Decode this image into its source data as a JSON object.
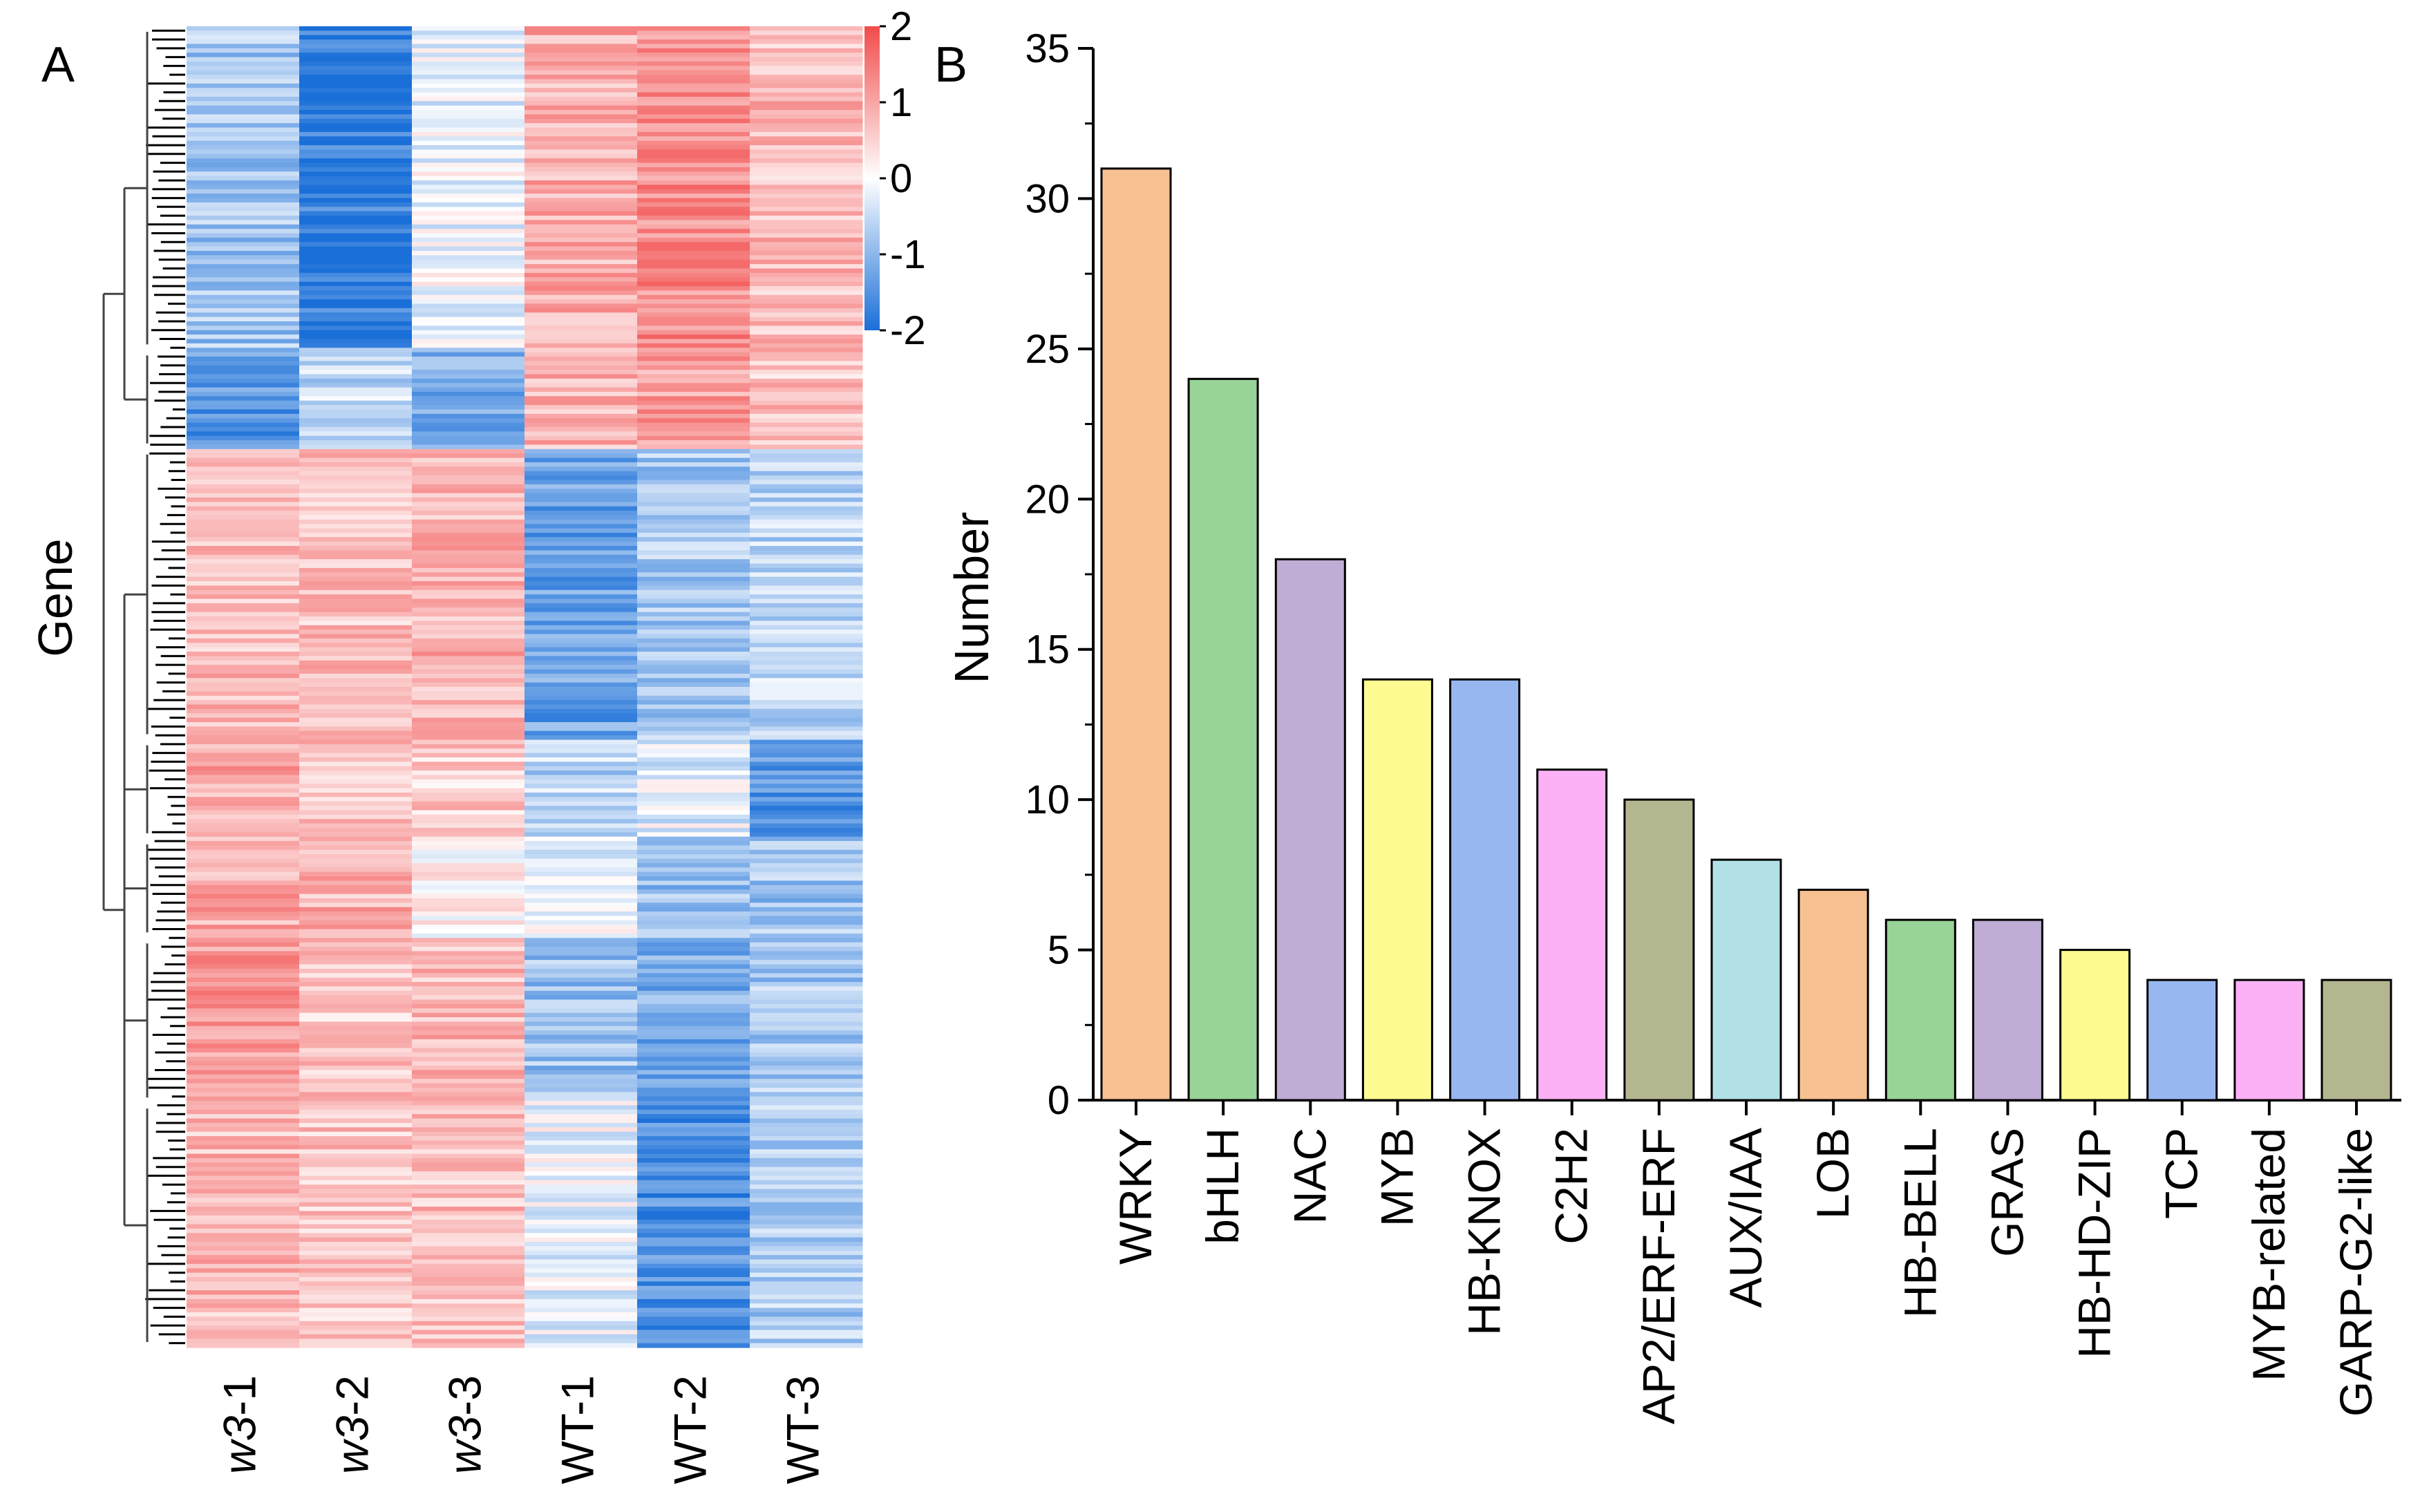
{
  "chart_data": [
    {
      "type": "heatmap",
      "panel_label": "A",
      "ylabel": "Gene",
      "columns": [
        {
          "prefix": "w3",
          "suffix": "-1",
          "prefix_italic": true
        },
        {
          "prefix": "w3",
          "suffix": "-2",
          "prefix_italic": true
        },
        {
          "prefix": "w3",
          "suffix": "-3",
          "prefix_italic": true
        },
        {
          "prefix": "WT",
          "suffix": "-1",
          "prefix_italic": false
        },
        {
          "prefix": "WT",
          "suffix": "-2",
          "prefix_italic": false
        },
        {
          "prefix": "WT",
          "suffix": "-3",
          "prefix_italic": false
        }
      ],
      "row_clusters": [
        {
          "share": 0.245,
          "values": [
            -0.8,
            -1.8,
            -0.15,
            0.9,
            1.25,
            0.75
          ]
        },
        {
          "share": 0.075,
          "values": [
            -1.4,
            -0.5,
            -1.1,
            0.85,
            1.1,
            0.65
          ]
        },
        {
          "share": 0.22,
          "values": [
            0.75,
            0.7,
            0.85,
            -1.3,
            -0.75,
            -0.55
          ]
        },
        {
          "share": 0.075,
          "values": [
            0.95,
            0.7,
            0.55,
            -0.6,
            -0.25,
            -1.5
          ]
        },
        {
          "share": 0.075,
          "values": [
            0.95,
            0.85,
            0.2,
            -0.2,
            -0.9,
            -0.85
          ]
        },
        {
          "share": 0.125,
          "values": [
            1.15,
            0.6,
            0.75,
            -0.85,
            -1.15,
            -0.75
          ]
        },
        {
          "share": 0.185,
          "values": [
            0.75,
            0.65,
            0.7,
            -0.15,
            -1.55,
            -0.7
          ]
        }
      ],
      "colorbar": {
        "ticks": [
          "2",
          "1",
          "0",
          "-1",
          "-2"
        ],
        "range": [
          -2,
          2
        ],
        "colors": {
          "low": "#1a6fd8",
          "mid": "#ffffff",
          "high": "#f24b4b"
        }
      }
    },
    {
      "type": "bar",
      "panel_label": "B",
      "ylabel": "Number",
      "ylim": [
        0,
        35
      ],
      "yticks": [
        "0",
        "5",
        "10",
        "15",
        "20",
        "25",
        "30",
        "35"
      ],
      "grid": false,
      "categories": [
        "WRKY",
        "bHLH",
        "NAC",
        "MYB",
        "HB-KNOX",
        "C2H2",
        "AP2/ERF-ERF",
        "AUX/IAA",
        "LOB",
        "HB-BELL",
        "GRAS",
        "HB-HD-ZIP",
        "TCP",
        "MYB-related",
        "GARP-G2-like"
      ],
      "values": [
        31,
        24,
        18,
        14,
        14,
        11,
        10,
        8,
        7,
        6,
        6,
        5,
        4,
        4,
        4
      ],
      "colors": [
        "#f8c191",
        "#98d398",
        "#bfadd5",
        "#fdfb92",
        "#98b7f1",
        "#fbb1f6",
        "#b3b68f",
        "#b1e1e6",
        "#f8c191",
        "#98d398",
        "#bfadd5",
        "#fdfb92",
        "#98b7f1",
        "#fbb1f6",
        "#b3b68f"
      ]
    }
  ]
}
